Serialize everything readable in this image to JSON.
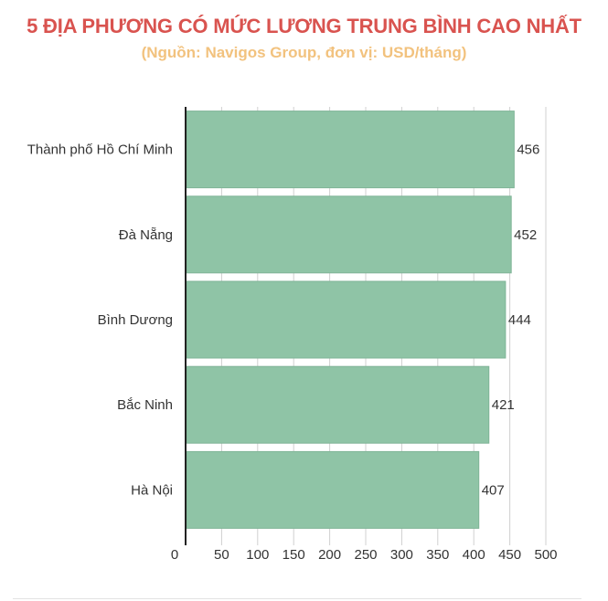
{
  "chart_data": {
    "type": "bar",
    "orientation": "horizontal",
    "title": "5 ĐỊA PHƯƠNG CÓ MỨC LƯƠNG TRUNG BÌNH CAO NHẤT",
    "subtitle": "(Nguồn: Navigos Group, đơn vị: USD/tháng)",
    "categories": [
      "Thành phố Hồ Chí Minh",
      "Đà Nẵng",
      "Bình Dương",
      "Bắc Ninh",
      "Hà Nội"
    ],
    "values": [
      456,
      452,
      444,
      421,
      407
    ],
    "xlim": [
      0,
      500
    ],
    "x_ticks": [
      0,
      50,
      100,
      150,
      200,
      250,
      300,
      350,
      400,
      450,
      500
    ],
    "grid": true,
    "legend": "none",
    "colors": {
      "bar": "#8fc4a6",
      "bar_stroke": "#7fb497",
      "title": "#d9534f",
      "subtitle": "#f2c27e",
      "axis": "#333333",
      "grid": "#d0d0d0",
      "text": "#333333"
    }
  }
}
